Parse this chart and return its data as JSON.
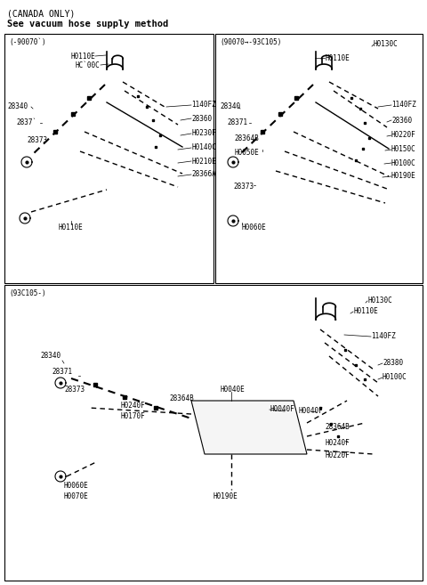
{
  "bg_color": "#ffffff",
  "text_color": "#000000",
  "title1": "(CANADA ONLY)",
  "title2": "See vacuum hose supply method",
  "p1_label": "(-90070`)",
  "p2_label": "(90070→-93C105)",
  "p3_label": "(93C105-)",
  "fig_w": 4.8,
  "fig_h": 6.57,
  "dpi": 100
}
